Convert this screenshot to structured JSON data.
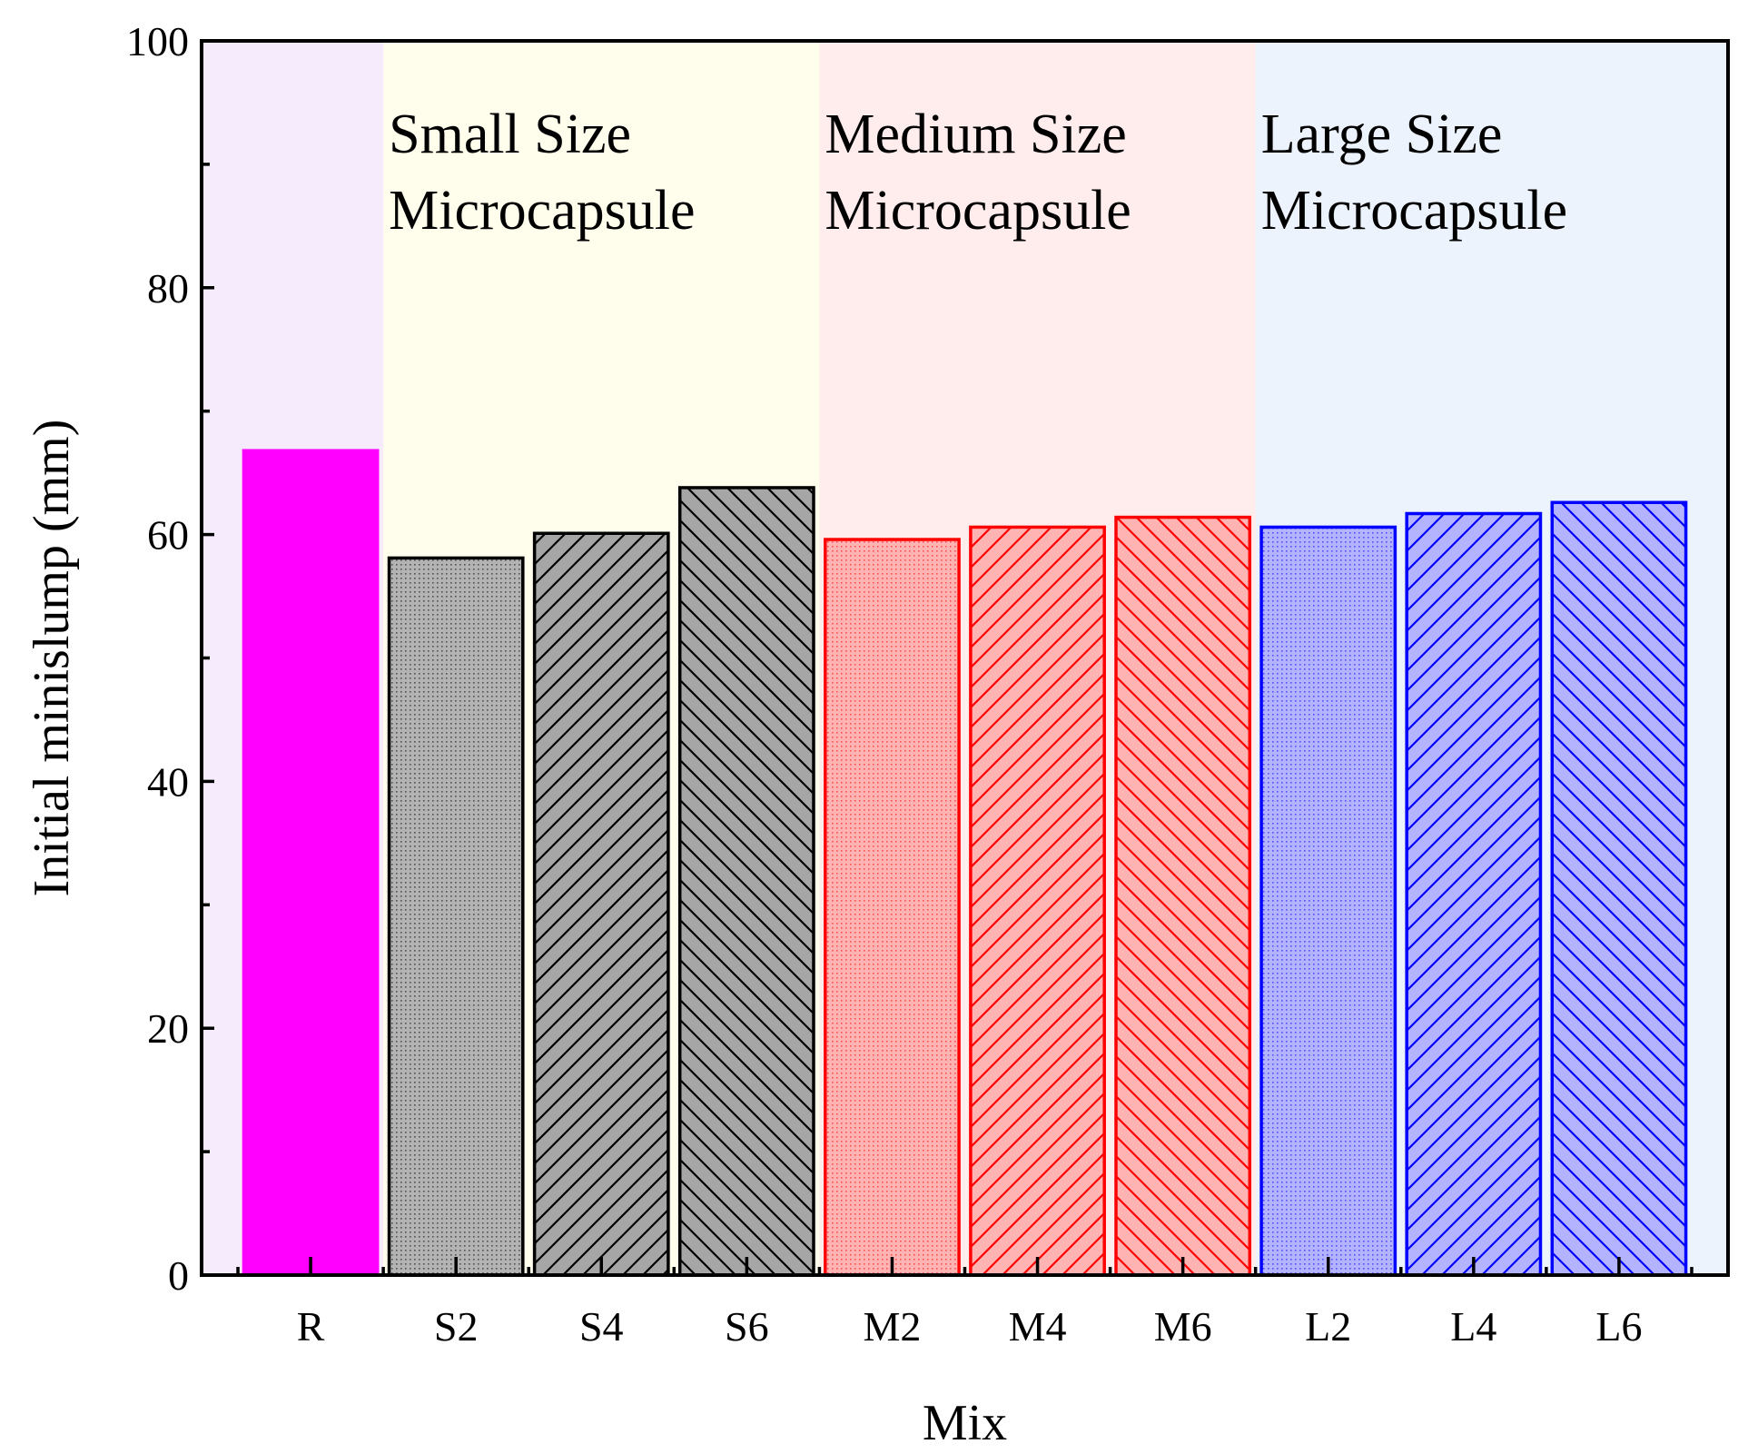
{
  "chart_data": {
    "type": "bar",
    "title": "",
    "xlabel": "Mix",
    "ylabel": "Initial minislump (mm)",
    "ylim": [
      0,
      100
    ],
    "yticks": [
      0,
      20,
      40,
      60,
      80,
      100
    ],
    "y_minor_step": 10,
    "grid": false,
    "categories": [
      "R",
      "S2",
      "S4",
      "S6",
      "M2",
      "M4",
      "M6",
      "L2",
      "L4",
      "L6"
    ],
    "values": [
      66.8,
      58.1,
      60.1,
      63.8,
      59.6,
      60.6,
      61.4,
      60.6,
      61.7,
      62.6
    ],
    "bar_styles": [
      {
        "fill": "#ff00ff",
        "stroke": "#ff00ff",
        "pattern": "solid"
      },
      {
        "fill": "#b3b3b3",
        "stroke": "#000000",
        "pattern": "dots"
      },
      {
        "fill": "#a6a6a6",
        "stroke": "#000000",
        "pattern": "diag-up"
      },
      {
        "fill": "#a6a6a6",
        "stroke": "#000000",
        "pattern": "diag-down"
      },
      {
        "fill": "#ffb3b3",
        "stroke": "#ff0000",
        "pattern": "dots"
      },
      {
        "fill": "#ffb3b3",
        "stroke": "#ff0000",
        "pattern": "diag-up"
      },
      {
        "fill": "#ffb3b3",
        "stroke": "#ff0000",
        "pattern": "diag-down"
      },
      {
        "fill": "#b3b3ff",
        "stroke": "#0000ff",
        "pattern": "dots"
      },
      {
        "fill": "#b3b3ff",
        "stroke": "#0000ff",
        "pattern": "diag-up"
      },
      {
        "fill": "#b3b3ff",
        "stroke": "#0000ff",
        "pattern": "diag-down"
      }
    ],
    "regions": [
      {
        "from": 0,
        "to": 0,
        "color": "#f6eafd",
        "label_line1": "",
        "label_line2": ""
      },
      {
        "from": 1,
        "to": 3,
        "color": "#fffdec",
        "label_line1": "Small Size",
        "label_line2": "Microcapsule"
      },
      {
        "from": 4,
        "to": 6,
        "color": "#ffecec",
        "label_line1": "Medium Size",
        "label_line2": "Microcapsule"
      },
      {
        "from": 7,
        "to": 9,
        "color": "#edf3fd",
        "label_line1": "Large Size",
        "label_line2": "Microcapsule"
      }
    ]
  }
}
